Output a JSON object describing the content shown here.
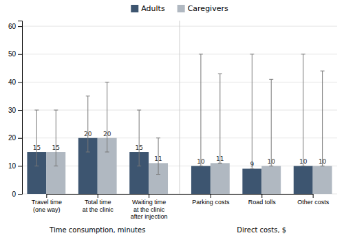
{
  "chart_data": {
    "type": "bar",
    "categories": [
      "Travel time\n(one way)",
      "Total time\nat the clinic",
      "Waiting time\nat the clinic\nafter injection",
      "Parking costs",
      "Road tolls",
      "Other costs"
    ],
    "series": [
      {
        "name": "Adults",
        "color": "#3d5570",
        "values": [
          15,
          20,
          15,
          10,
          9,
          10
        ],
        "error_upper": [
          15,
          15,
          15,
          40,
          41,
          40
        ],
        "error_lower": [
          5,
          5,
          5,
          0,
          0,
          0
        ]
      },
      {
        "name": "Caregivers",
        "color": "#b0b8c1",
        "values": [
          15,
          20,
          11,
          11,
          10,
          10
        ],
        "error_upper": [
          15,
          20,
          9,
          32,
          31,
          34
        ],
        "error_lower": [
          5,
          5,
          4,
          0,
          0,
          0
        ]
      }
    ],
    "annotations": [
      "Time consumption, minutes",
      "Direct costs, $"
    ],
    "ylim": [
      0,
      62
    ],
    "yticks": [
      0,
      10,
      20,
      30,
      40,
      50,
      60
    ],
    "grid": true,
    "legend": "top",
    "data_labels": true
  }
}
